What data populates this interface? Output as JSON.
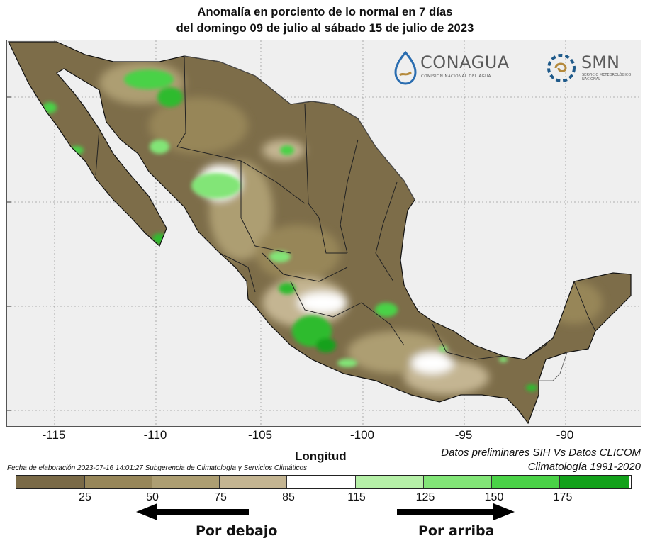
{
  "title": {
    "line1": "Anomalía en porciento de lo normal en 7 días",
    "line2": "del domingo 09 de julio al sábado 15 de julio de 2023"
  },
  "logos": {
    "conagua": "CONAGUA",
    "conagua_sub": "COMISIÓN NACIONAL DEL AGUA",
    "smn": "SMN",
    "smn_sub": "SERVICIO METEOROLÓGICO NACIONAL"
  },
  "axis": {
    "x_label": "Longitud",
    "x_ticks": [
      "-115",
      "-110",
      "-105",
      "-100",
      "-95",
      "-90"
    ]
  },
  "notes": {
    "line1": "Datos preliminares SIH Vs Datos CLICOM",
    "line2": "Climatología 1991-2020",
    "created": "Fecha de elaboración 2023-07-16 14:01:27 Subgerencia de Climatología y Servicios Climáticos"
  },
  "legend": {
    "colors": [
      "#7a6a47",
      "#978659",
      "#ad9e72",
      "#c4b592",
      "#ffffff",
      "#b6f0a8",
      "#82e577",
      "#4ad247",
      "#2dbb2e",
      "#12a11a"
    ],
    "labels": [
      "25",
      "50",
      "75",
      "85",
      "115",
      "125",
      "150",
      "175"
    ],
    "below_label": "Por debajo",
    "above_label": "Por arriba"
  }
}
